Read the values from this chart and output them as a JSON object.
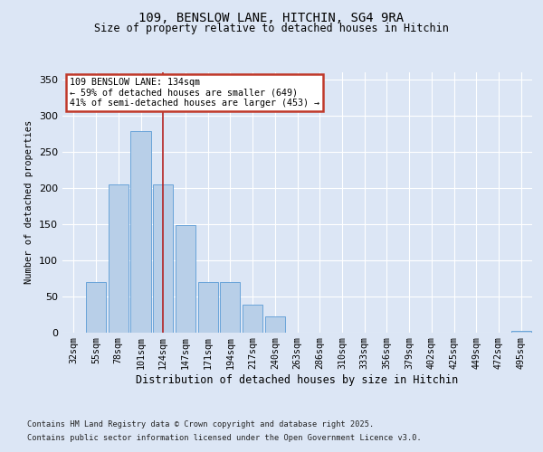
{
  "title1": "109, BENSLOW LANE, HITCHIN, SG4 9RA",
  "title2": "Size of property relative to detached houses in Hitchin",
  "xlabel": "Distribution of detached houses by size in Hitchin",
  "ylabel": "Number of detached properties",
  "categories": [
    "32sqm",
    "55sqm",
    "78sqm",
    "101sqm",
    "124sqm",
    "147sqm",
    "171sqm",
    "194sqm",
    "217sqm",
    "240sqm",
    "263sqm",
    "286sqm",
    "310sqm",
    "333sqm",
    "356sqm",
    "379sqm",
    "402sqm",
    "425sqm",
    "449sqm",
    "472sqm",
    "495sqm"
  ],
  "values": [
    0,
    70,
    205,
    278,
    205,
    148,
    70,
    70,
    38,
    22,
    0,
    0,
    0,
    0,
    0,
    0,
    0,
    0,
    0,
    0,
    2
  ],
  "bar_color": "#b8cfe8",
  "bar_edge_color": "#5b9bd5",
  "vline_x_index": 4,
  "vline_color": "#b22222",
  "annotation_text": "109 BENSLOW LANE: 134sqm\n← 59% of detached houses are smaller (649)\n41% of semi-detached houses are larger (453) →",
  "annotation_box_color": "#ffffff",
  "annotation_box_edge": "#c0392b",
  "ylim": [
    0,
    360
  ],
  "yticks": [
    0,
    50,
    100,
    150,
    200,
    250,
    300,
    350
  ],
  "footer1": "Contains HM Land Registry data © Crown copyright and database right 2025.",
  "footer2": "Contains public sector information licensed under the Open Government Licence v3.0.",
  "bg_color": "#dce6f5",
  "plot_bg_color": "#dce6f5"
}
